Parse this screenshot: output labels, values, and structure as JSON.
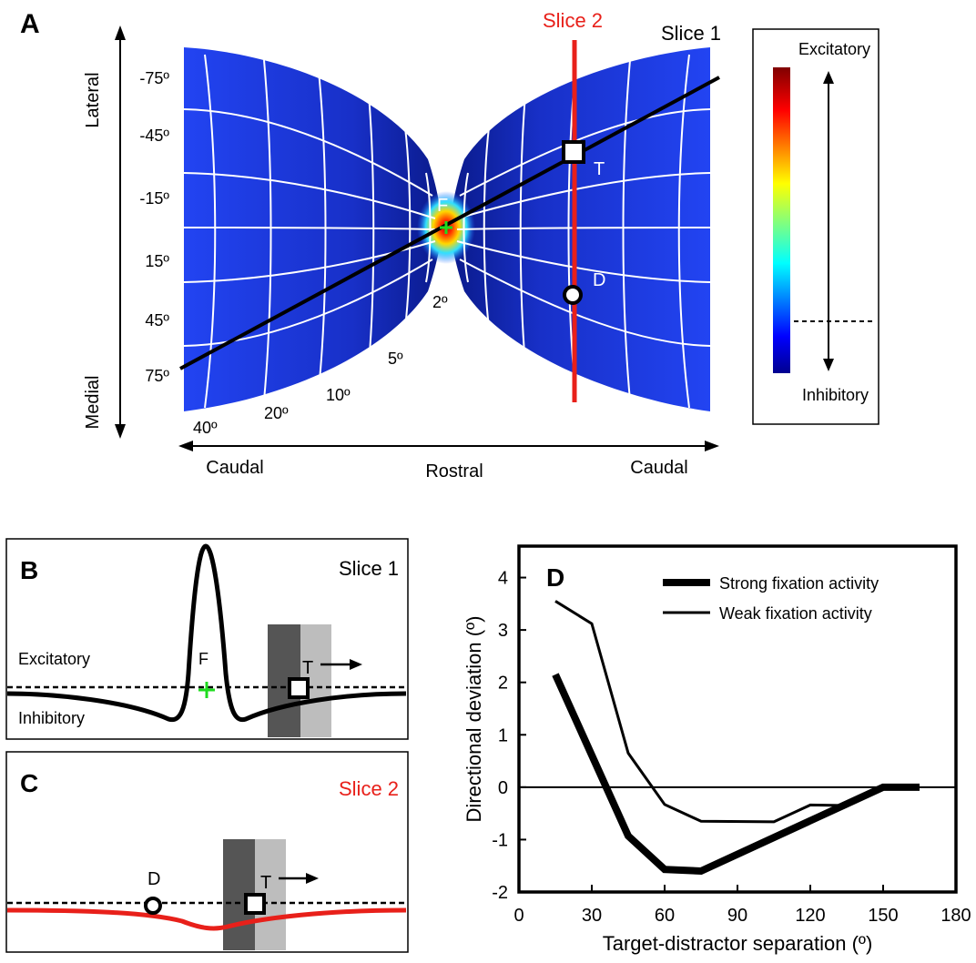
{
  "panels": {
    "A": {
      "label": "A",
      "slice1_label": "Slice 1",
      "slice2_label": "Slice 2",
      "axis_lateral": "Lateral",
      "axis_medial": "Medial",
      "axis_caudal_left": "Caudal",
      "axis_rostral": "Rostral",
      "axis_caudal_right": "Caudal",
      "direction_labels": [
        "-75º",
        "-45º",
        "-15º",
        "15º",
        "45º",
        "75º"
      ],
      "eccentricity_labels": [
        "40º",
        "20º",
        "10º",
        "5º",
        "2º"
      ],
      "marker_F": "F",
      "marker_T": "T",
      "marker_D": "D",
      "colorbar_top": "Excitatory",
      "colorbar_bottom": "Inhibitory",
      "colors": {
        "map_base": "#1f3ff2",
        "slice1": "#000000",
        "slice2": "#e8201a"
      }
    },
    "B": {
      "label": "B",
      "title": "Slice 1",
      "excitatory": "Excitatory",
      "inhibitory": "Inhibitory",
      "marker_F": "F",
      "marker_T": "T"
    },
    "C": {
      "label": "C",
      "title": "Slice 2",
      "marker_D": "D",
      "marker_T": "T"
    },
    "D": {
      "label": "D"
    }
  },
  "chart_data": {
    "type": "line",
    "xlabel": "Target-distractor separation (º)",
    "ylabel": "Directional deviation (º)",
    "xlim": [
      0,
      180
    ],
    "ylim": [
      -2,
      4.6
    ],
    "xticks": [
      0,
      30,
      60,
      90,
      120,
      150,
      180
    ],
    "yticks": [
      -2,
      -1,
      0,
      1,
      2,
      3,
      4
    ],
    "legend_position": "top-right",
    "series": [
      {
        "name": "Strong fixation activity",
        "x": [
          15,
          45,
          60,
          75,
          150,
          165
        ],
        "y": [
          2.15,
          -0.93,
          -1.57,
          -1.6,
          0.0,
          0.0
        ]
      },
      {
        "name": "Weak fixation activity",
        "x": [
          15,
          30,
          45,
          60,
          75,
          105,
          120,
          135
        ],
        "y": [
          3.55,
          3.12,
          0.65,
          -0.33,
          -0.65,
          -0.66,
          -0.34,
          -0.35
        ]
      }
    ]
  }
}
